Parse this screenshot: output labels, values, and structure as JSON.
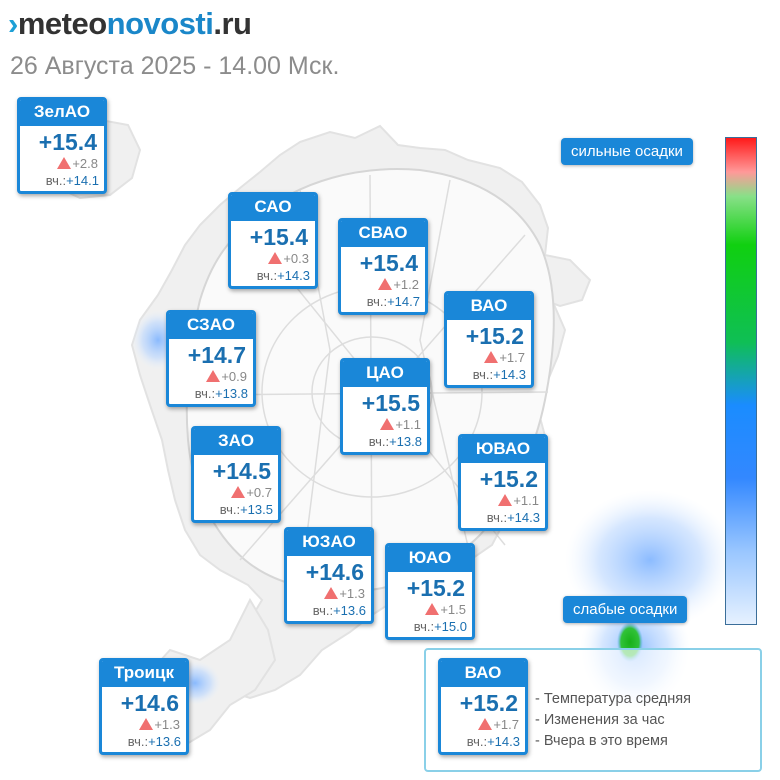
{
  "header": {
    "logo_mark": "›",
    "logo_part1": "meteo",
    "logo_part2": "novosti",
    "logo_part3": ".ru",
    "subtitle": "26 Августа 2025 - 14.00 Мск."
  },
  "yesterday_label": "вч.:",
  "districts": {
    "zelao": {
      "name": "ЗелАО",
      "temp": "+15.4",
      "change": "+2.8",
      "yesterday": "+14.1"
    },
    "sao": {
      "name": "САО",
      "temp": "+15.4",
      "change": "+0.3",
      "yesterday": "+14.3"
    },
    "svao": {
      "name": "СВАО",
      "temp": "+15.4",
      "change": "+1.2",
      "yesterday": "+14.7"
    },
    "vao": {
      "name": "ВАО",
      "temp": "+15.2",
      "change": "+1.7",
      "yesterday": "+14.3"
    },
    "szao": {
      "name": "СЗАО",
      "temp": "+14.7",
      "change": "+0.9",
      "yesterday": "+13.8"
    },
    "cao": {
      "name": "ЦАО",
      "temp": "+15.5",
      "change": "+1.1",
      "yesterday": "+13.8"
    },
    "zao": {
      "name": "ЗАО",
      "temp": "+14.5",
      "change": "+0.7",
      "yesterday": "+13.5"
    },
    "yuvao": {
      "name": "ЮВАО",
      "temp": "+15.2",
      "change": "+1.1",
      "yesterday": "+14.3"
    },
    "yuzao": {
      "name": "ЮЗАО",
      "temp": "+14.6",
      "change": "+1.3",
      "yesterday": "+13.6"
    },
    "yuao": {
      "name": "ЮАО",
      "temp": "+15.2",
      "change": "+1.5",
      "yesterday": "+15.0"
    },
    "troitsk": {
      "name": "Троицк",
      "temp": "+14.6",
      "change": "+1.3",
      "yesterday": "+13.6"
    }
  },
  "precip_scale": {
    "top_label": "сильные осадки",
    "bottom_label": "слабые осадки",
    "colors": [
      "#ff1a1a",
      "#10d010",
      "#1a8cff",
      "#e6f1ff"
    ]
  },
  "legend": {
    "example": {
      "name": "ВАО",
      "temp": "+15.2",
      "change": "+1.7",
      "yesterday": "+14.3"
    },
    "line1": "- Температура средняя",
    "line2": "- Изменения за час",
    "line3": "- Вчера в это время"
  },
  "colors": {
    "accent": "#1a87d8",
    "temp_text": "#1a6fb0",
    "rise_arrow": "#f07070"
  }
}
